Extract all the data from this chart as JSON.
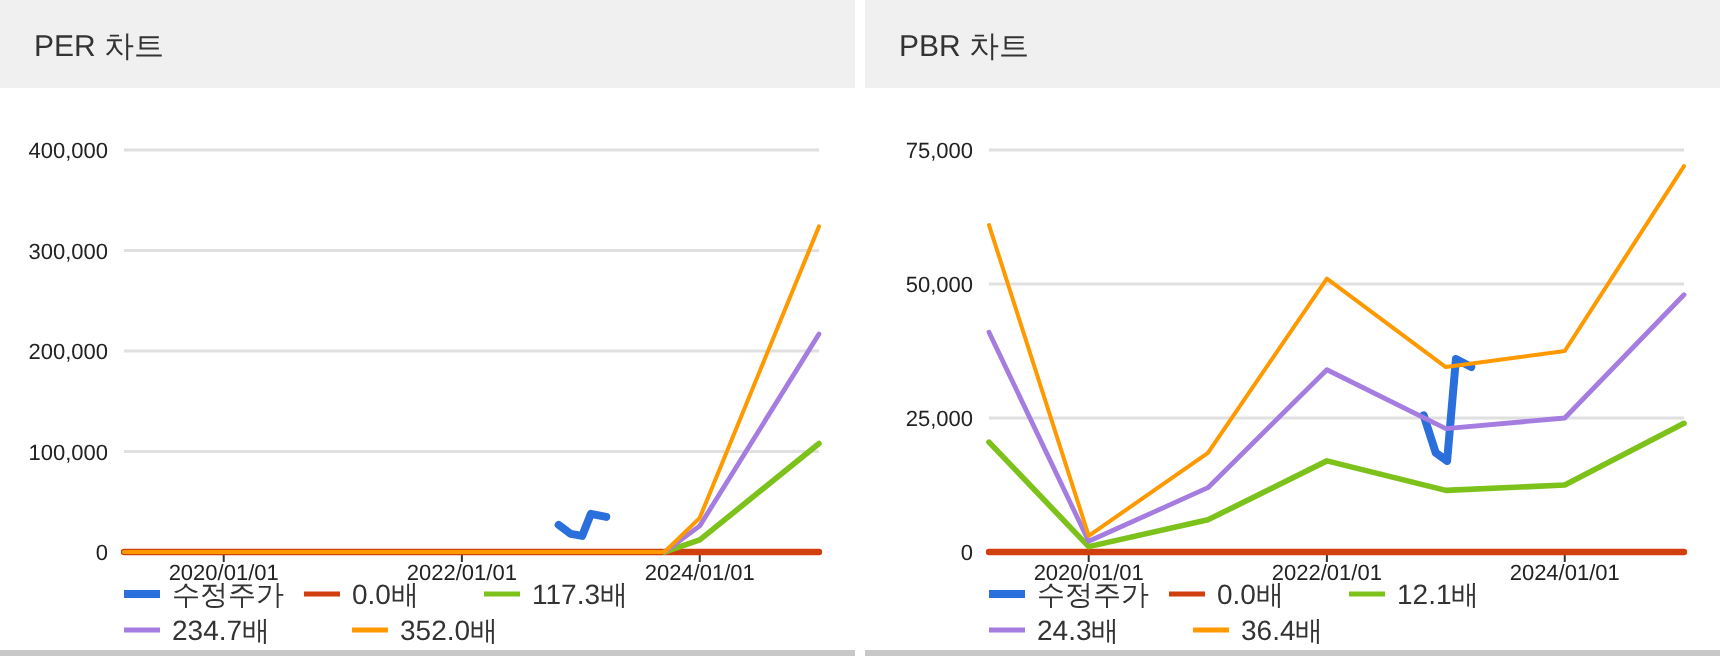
{
  "chart_data": [
    {
      "type": "line",
      "title": "PER 차트",
      "x": [
        "2019-03-01",
        "2020-01-01",
        "2021-01-01",
        "2022-01-01",
        "2023-01-01",
        "2023-09-15",
        "2024-01-01",
        "2025-01-01"
      ],
      "xlim": [
        "2019-03-01",
        "2025-01-01"
      ],
      "xticks": [
        {
          "value": "2020-01-01",
          "label": "2020/01/01"
        },
        {
          "value": "2022-01-01",
          "label": "2022/01/01"
        },
        {
          "value": "2024-01-01",
          "label": "2024/01/01"
        }
      ],
      "ylim": [
        0,
        400000
      ],
      "yticks": [
        {
          "value": 0,
          "label": "0"
        },
        {
          "value": 100000,
          "label": "100,000"
        },
        {
          "value": 200000,
          "label": "200,000"
        },
        {
          "value": 300000,
          "label": "300,000"
        },
        {
          "value": 400000,
          "label": "400,000"
        }
      ],
      "grid": "y",
      "legend": "bottom",
      "series": [
        {
          "name": "수정주가",
          "color": "#2a6fdb",
          "x": [
            "2022-10-25",
            "2022-12-01",
            "2023-01-05",
            "2023-02-01",
            "2023-03-20"
          ],
          "values": [
            27000,
            18000,
            16000,
            38000,
            35000
          ]
        },
        {
          "name": "0.0배",
          "color": "#d23f0f",
          "values": [
            0,
            0,
            0,
            0,
            0,
            0,
            0,
            0
          ]
        },
        {
          "name": "117.3배",
          "color": "#7cc21a",
          "values": [
            null,
            null,
            null,
            null,
            null,
            0,
            12000,
            108000
          ]
        },
        {
          "name": "234.7배",
          "color": "#a57de0",
          "values": [
            null,
            null,
            null,
            null,
            null,
            0,
            26000,
            217000
          ]
        },
        {
          "name": "352.0배",
          "color": "#ff9900",
          "values": [
            0,
            0,
            0,
            0,
            0,
            0,
            34000,
            324000
          ]
        }
      ]
    },
    {
      "type": "line",
      "title": "PBR 차트",
      "x": [
        "2019-03-01",
        "2020-01-01",
        "2021-01-01",
        "2022-01-01",
        "2023-01-01",
        "2024-01-01",
        "2025-01-01"
      ],
      "xlim": [
        "2019-03-01",
        "2025-01-01"
      ],
      "xticks": [
        {
          "value": "2020-01-01",
          "label": "2020/01/01"
        },
        {
          "value": "2022-01-01",
          "label": "2022/01/01"
        },
        {
          "value": "2024-01-01",
          "label": "2024/01/01"
        }
      ],
      "ylim": [
        0,
        75000
      ],
      "yticks": [
        {
          "value": 0,
          "label": "0"
        },
        {
          "value": 25000,
          "label": "25,000"
        },
        {
          "value": 50000,
          "label": "50,000"
        },
        {
          "value": 75000,
          "label": "75,000"
        }
      ],
      "grid": "y",
      "legend": "bottom",
      "series": [
        {
          "name": "수정주가",
          "color": "#2a6fdb",
          "x": [
            "2022-10-25",
            "2022-12-01",
            "2023-01-05",
            "2023-02-01",
            "2023-03-20"
          ],
          "values": [
            25500,
            18500,
            17000,
            36000,
            34500
          ]
        },
        {
          "name": "0.0배",
          "color": "#d23f0f",
          "values": [
            0,
            0,
            0,
            0,
            0,
            0,
            0
          ]
        },
        {
          "name": "12.1배",
          "color": "#7cc21a",
          "values": [
            20500,
            1000,
            6000,
            17000,
            11500,
            12500,
            24000
          ]
        },
        {
          "name": "24.3배",
          "color": "#a57de0",
          "values": [
            41000,
            2000,
            12000,
            34000,
            23000,
            25000,
            48000
          ]
        },
        {
          "name": "36.4배",
          "color": "#ff9900",
          "values": [
            61000,
            3000,
            18500,
            51000,
            34500,
            37500,
            72000
          ]
        }
      ]
    }
  ]
}
